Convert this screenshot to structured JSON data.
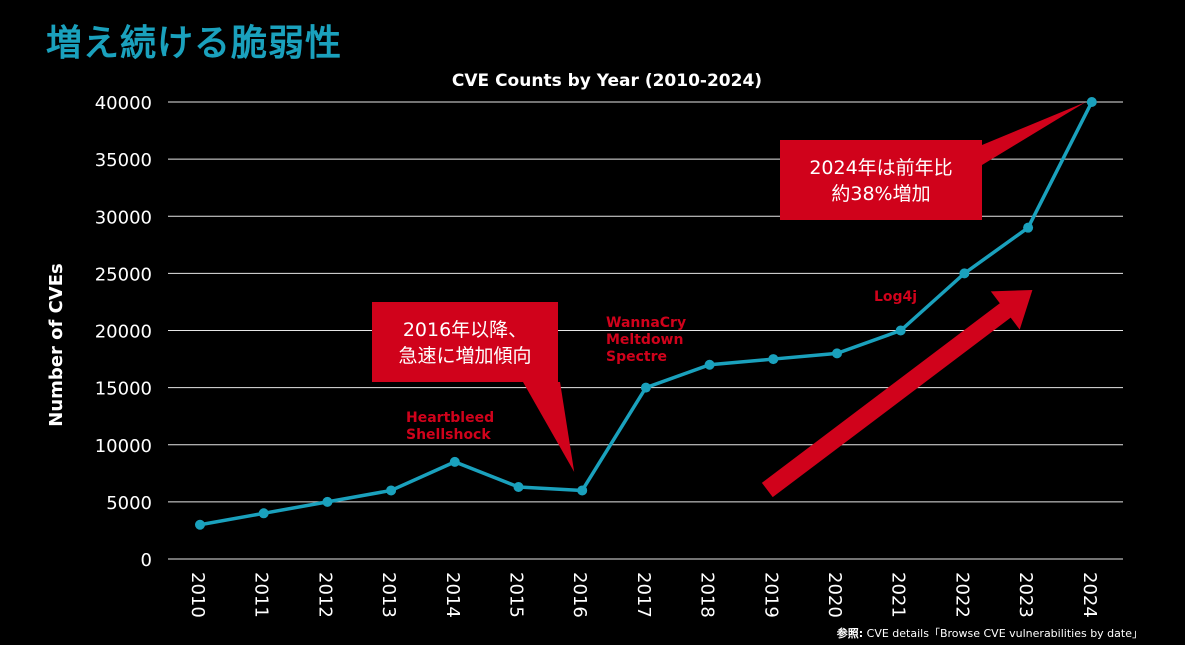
{
  "slide": {
    "title": "増え続ける脆弱性",
    "source_prefix": "参照:",
    "source_text": "CVE details「Browse CVE vulnerabilities by date」"
  },
  "colors": {
    "background": "#000000",
    "title": "#1aa1bd",
    "line": "#1aa1bd",
    "grid": "#e6e6e6",
    "callout": "#d0021b",
    "event_text": "#d0021b",
    "arrow": "#d0021b"
  },
  "chart_data": {
    "type": "line",
    "title": "CVE Counts by Year (2010-2024)",
    "xlabel": "",
    "ylabel": "Number of CVEs",
    "ylim": [
      0,
      40000
    ],
    "yticks": [
      0,
      5000,
      10000,
      15000,
      20000,
      25000,
      30000,
      35000,
      40000
    ],
    "grid": true,
    "categories": [
      "2010",
      "2011",
      "2012",
      "2013",
      "2014",
      "2015",
      "2016",
      "2017",
      "2018",
      "2019",
      "2020",
      "2021",
      "2022",
      "2023",
      "2024"
    ],
    "series": [
      {
        "name": "CVE Counts",
        "values": [
          3000,
          4000,
          5000,
          6000,
          8500,
          6300,
          6000,
          15000,
          17000,
          17500,
          18000,
          20000,
          25000,
          29000,
          40000
        ]
      }
    ],
    "events": [
      {
        "year": "2014",
        "lines": [
          "Heartbleed",
          "Shellshock"
        ]
      },
      {
        "year": "2017",
        "lines": [
          "WannaCry",
          "Meltdown",
          "Spectre"
        ]
      },
      {
        "year": "2021",
        "lines": [
          "Log4j"
        ]
      }
    ],
    "callouts": [
      {
        "id": "trend2016",
        "lines": [
          "2016年以降、",
          "急速に増加傾向"
        ],
        "points_to_year": "2016"
      },
      {
        "id": "growth2024",
        "lines": [
          "2024年は前年比",
          "約38%増加"
        ],
        "points_to_year": "2024"
      }
    ],
    "trend_arrow": {
      "from_year": "2019",
      "to_year": "2022",
      "direction": "up"
    }
  }
}
